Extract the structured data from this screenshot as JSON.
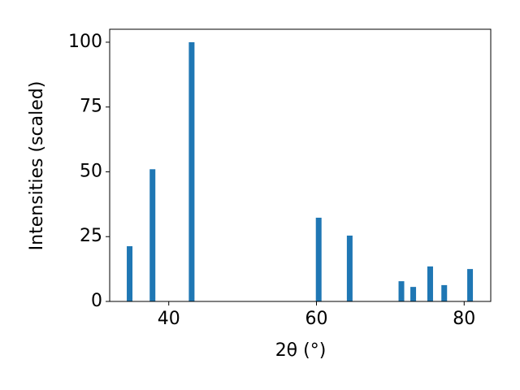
{
  "chart_data": {
    "type": "bar",
    "xlabel": "2θ (°)",
    "ylabel": "Intensities (scaled)",
    "x": [
      34.7,
      37.8,
      43.1,
      60.3,
      64.5,
      71.5,
      73.1,
      75.4,
      77.3,
      80.8
    ],
    "values": [
      21.3,
      51,
      100,
      32.3,
      25.4,
      7.8,
      5.6,
      13.5,
      6.3,
      12.5
    ],
    "color": "#1f77b4",
    "xlim": [
      32,
      83.6
    ],
    "xticks": [
      40,
      60,
      80
    ],
    "ylim": [
      0,
      105
    ],
    "yticks": [
      0,
      25,
      50,
      75,
      100
    ]
  }
}
